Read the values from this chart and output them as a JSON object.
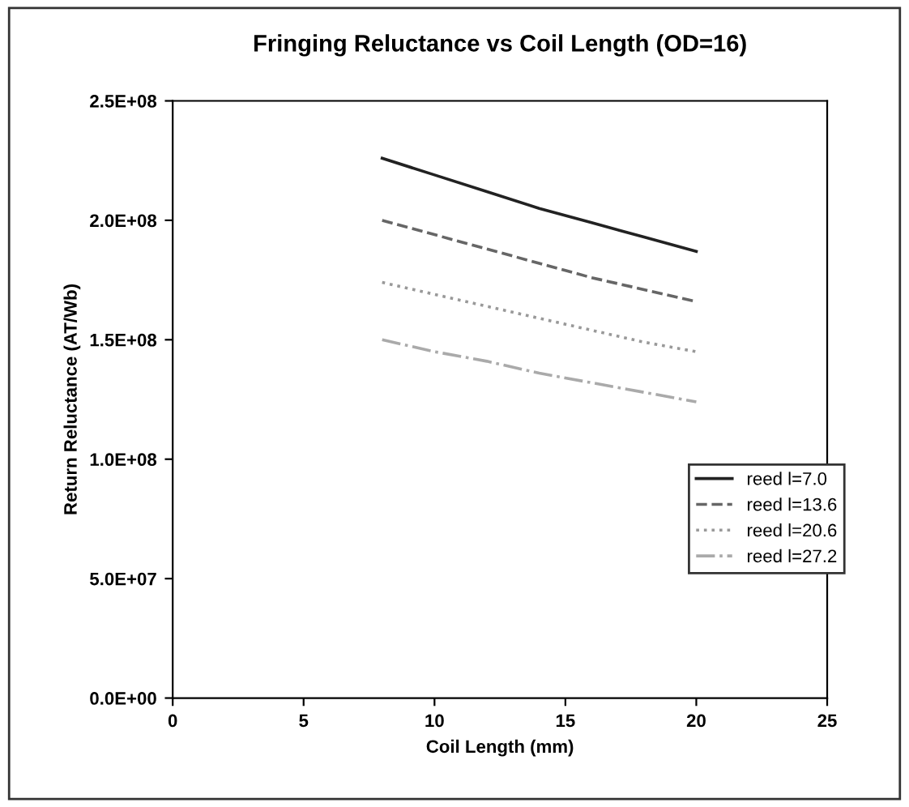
{
  "chart_data": {
    "type": "line",
    "title": "Fringing Reluctance vs Coil Length (OD=16)",
    "xlabel": "Coil Length (mm)",
    "ylabel": "Return Reluctance (AT/Wb)",
    "x": [
      8,
      10,
      12,
      14,
      16,
      18,
      20
    ],
    "series": [
      {
        "name": "reed l=7.0",
        "color": "#222222",
        "line_style": "solid",
        "values": [
          226000000,
          219000000,
          212000000,
          205000000,
          199000000,
          193000000,
          187000000
        ]
      },
      {
        "name": "reed l=13.6",
        "color": "#666666",
        "line_style": "dashed",
        "values": [
          200000000,
          194000000,
          188000000,
          182000000,
          176000000,
          171000000,
          166000000
        ]
      },
      {
        "name": "reed l=20.6",
        "color": "#999999",
        "line_style": "dotted",
        "values": [
          174000000,
          169000000,
          164000000,
          159000000,
          154000000,
          149000000,
          145000000
        ]
      },
      {
        "name": "reed l=27.2",
        "color": "#aaaaaa",
        "line_style": "dashdot",
        "values": [
          150000000,
          145000000,
          141000000,
          136000000,
          132000000,
          128000000,
          124000000
        ]
      }
    ],
    "xlim": [
      0,
      25
    ],
    "xticks": [
      0,
      5,
      10,
      15,
      20,
      25
    ],
    "ylim": [
      0,
      250000000
    ],
    "yticks": [
      {
        "value": 0,
        "label": "0.0E+00"
      },
      {
        "value": 50000000,
        "label": "5.0E+07"
      },
      {
        "value": 100000000,
        "label": "1.0E+08"
      },
      {
        "value": 150000000,
        "label": "1.5E+08"
      },
      {
        "value": 200000000,
        "label": "2.0E+08"
      },
      {
        "value": 250000000,
        "label": "2.5E+08"
      }
    ],
    "grid": false,
    "legend": "right"
  }
}
